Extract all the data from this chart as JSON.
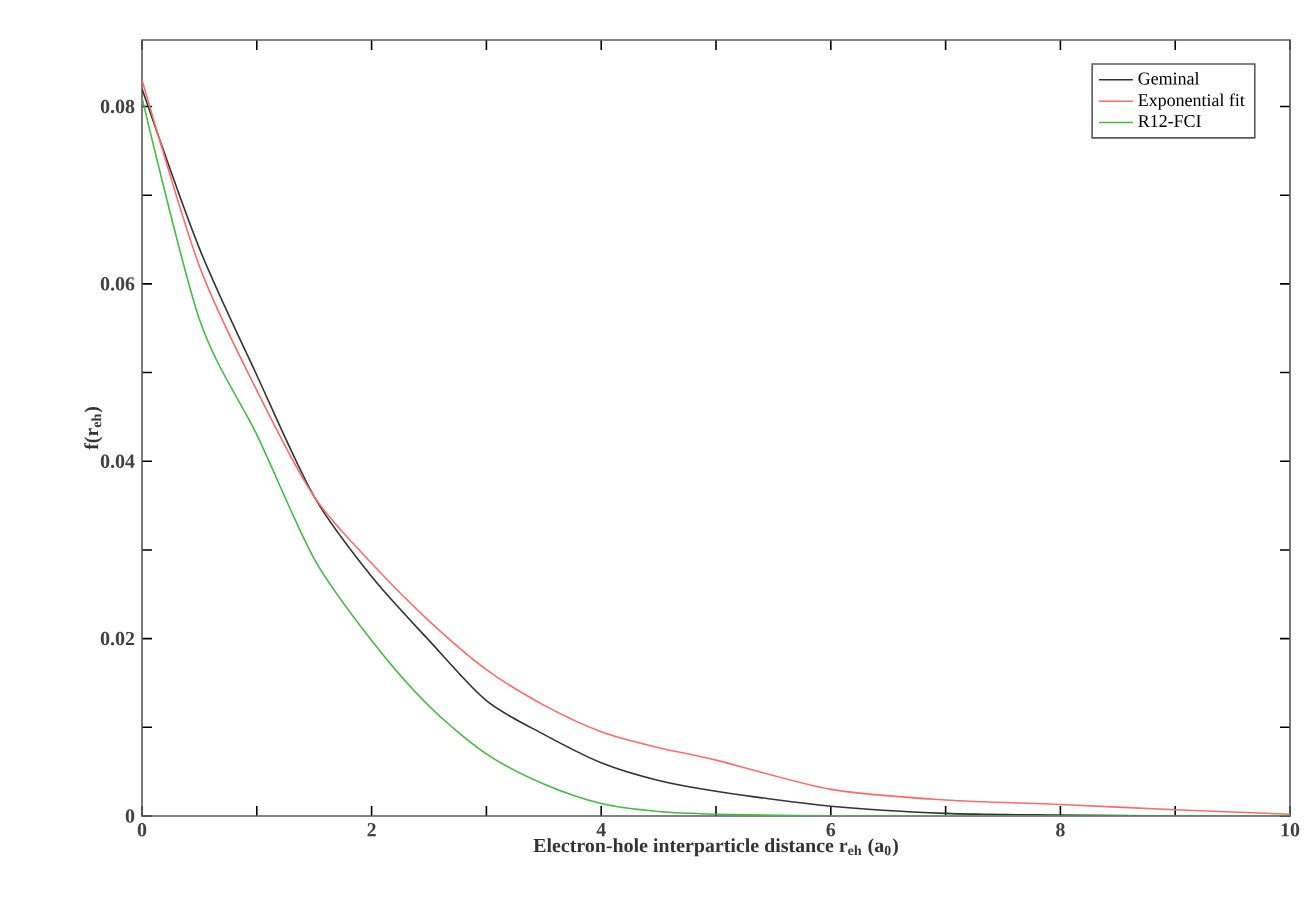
{
  "chart_data": {
    "type": "line",
    "xlabel": "Electron-hole interparticle distance r$_{eh}$ (a$_{0}$)",
    "ylabel": "f(r$_{eh}$)",
    "xlim": [
      0,
      10
    ],
    "ylim": [
      0,
      0.0875
    ],
    "xticks": [
      0,
      {
        "value": 1,
        "label": null
      },
      2,
      {
        "value": 3,
        "label": null
      },
      4,
      {
        "value": 5,
        "label": null
      },
      6,
      {
        "value": 7,
        "label": null
      },
      8,
      {
        "value": 9,
        "label": null
      },
      10
    ],
    "yticks": [
      0,
      {
        "value": 0.01,
        "label": null
      },
      0.02,
      {
        "value": 0.03,
        "label": null
      },
      0.04,
      {
        "value": 0.05,
        "label": null
      },
      0.06,
      {
        "value": 0.07,
        "label": null
      },
      0.08
    ],
    "x": [
      0,
      0.5,
      1,
      1.5,
      2,
      2.5,
      3,
      3.5,
      4,
      4.5,
      5,
      6,
      7,
      8,
      9,
      10
    ],
    "series": [
      {
        "name": "Geminal",
        "color": "#333333",
        "values": [
          0.082,
          0.064,
          0.0497,
          0.036,
          0.027,
          0.0198,
          0.013,
          0.0092,
          0.006,
          0.004,
          0.0028,
          0.0011,
          0.0003,
          0.0001,
          0.0,
          0.0
        ]
      },
      {
        "name": "Exponential fit",
        "color": "#ff6b6b",
        "values": [
          0.083,
          0.062,
          0.048,
          0.036,
          0.0285,
          0.022,
          0.0165,
          0.0125,
          0.0095,
          0.0077,
          0.0063,
          0.003,
          0.0018,
          0.0013,
          0.0007,
          0.0002
        ]
      },
      {
        "name": "R12-FCI",
        "color": "#44bb44",
        "values": [
          0.081,
          0.056,
          0.043,
          0.029,
          0.0198,
          0.0124,
          0.007,
          0.0036,
          0.0014,
          0.0005,
          0.0002,
          0.0,
          0.0,
          0.0,
          0.0,
          0.0
        ]
      }
    ],
    "legend": "top right",
    "grid": false,
    "marker": "none",
    "line_style": "solid"
  }
}
